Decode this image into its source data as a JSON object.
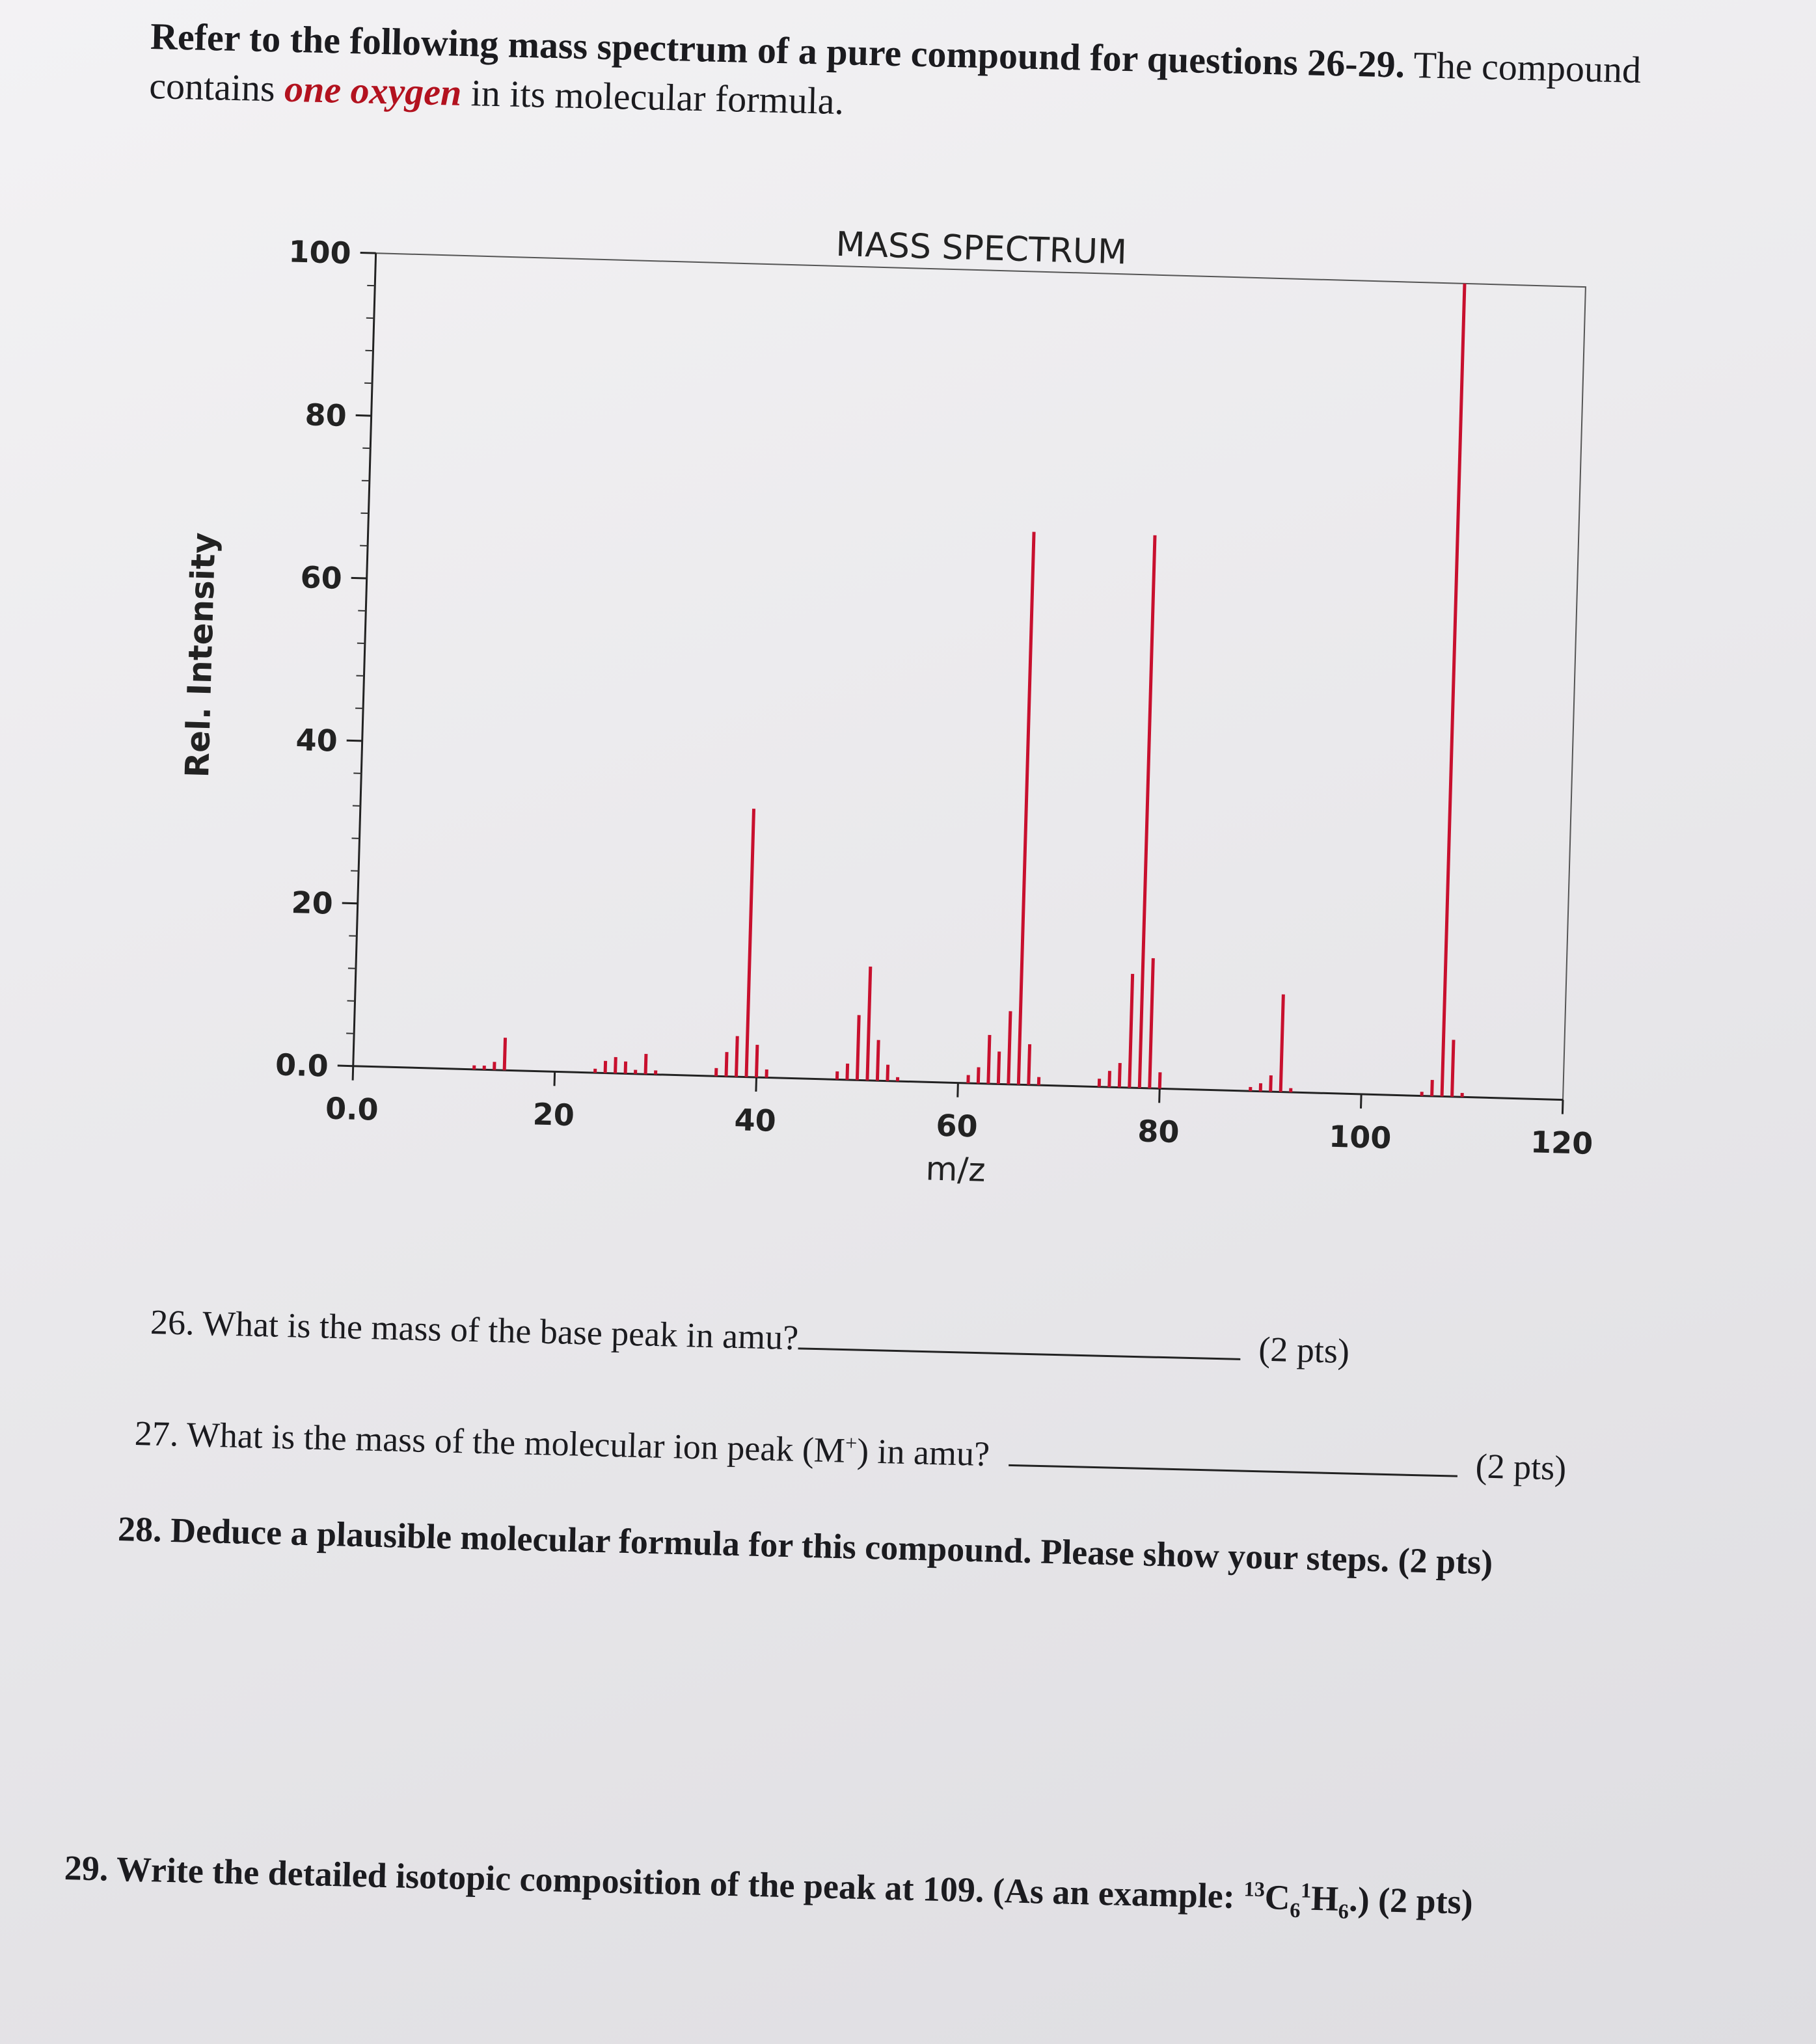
{
  "intro": {
    "part1": "Refer to the following mass spectrum of a pure compound for questions 26-29.",
    "part2": " The compound contains ",
    "accent": "one oxygen",
    "part3": " in its molecular formula."
  },
  "chart_data": {
    "type": "bar",
    "title": "MASS SPECTRUM",
    "xlabel": "m/z",
    "ylabel": "Rel. Intensity",
    "xlim": [
      0,
      120
    ],
    "ylim": [
      0,
      100
    ],
    "xticks": [
      {
        "value": 0,
        "label": "0.0"
      },
      {
        "value": 20,
        "label": "20"
      },
      {
        "value": 40,
        "label": "40"
      },
      {
        "value": 60,
        "label": "60"
      },
      {
        "value": 80,
        "label": "80"
      },
      {
        "value": 100,
        "label": "100"
      },
      {
        "value": 120,
        "label": "120"
      }
    ],
    "yticks": [
      {
        "value": 0,
        "label": "0.0"
      },
      {
        "value": 20,
        "label": "20"
      },
      {
        "value": 40,
        "label": "40"
      },
      {
        "value": 60,
        "label": "60"
      },
      {
        "value": 80,
        "label": "80"
      },
      {
        "value": 100,
        "label": "100"
      }
    ],
    "peak_color": "#c8102e",
    "peaks": [
      {
        "mz": 12,
        "intensity": 0.5
      },
      {
        "mz": 13,
        "intensity": 0.5
      },
      {
        "mz": 14,
        "intensity": 1
      },
      {
        "mz": 15,
        "intensity": 4
      },
      {
        "mz": 24,
        "intensity": 0.5
      },
      {
        "mz": 25,
        "intensity": 1.5
      },
      {
        "mz": 26,
        "intensity": 2
      },
      {
        "mz": 27,
        "intensity": 1.5
      },
      {
        "mz": 28,
        "intensity": 0.5
      },
      {
        "mz": 29,
        "intensity": 2.5
      },
      {
        "mz": 30,
        "intensity": 0.5
      },
      {
        "mz": 36,
        "intensity": 1
      },
      {
        "mz": 37,
        "intensity": 3
      },
      {
        "mz": 38,
        "intensity": 5
      },
      {
        "mz": 39,
        "intensity": 33
      },
      {
        "mz": 40,
        "intensity": 4
      },
      {
        "mz": 41,
        "intensity": 1
      },
      {
        "mz": 48,
        "intensity": 1
      },
      {
        "mz": 49,
        "intensity": 2
      },
      {
        "mz": 50,
        "intensity": 8
      },
      {
        "mz": 51,
        "intensity": 14
      },
      {
        "mz": 52,
        "intensity": 5
      },
      {
        "mz": 53,
        "intensity": 2
      },
      {
        "mz": 54,
        "intensity": 0.5
      },
      {
        "mz": 61,
        "intensity": 1
      },
      {
        "mz": 62,
        "intensity": 2
      },
      {
        "mz": 63,
        "intensity": 6
      },
      {
        "mz": 64,
        "intensity": 4
      },
      {
        "mz": 65,
        "intensity": 9
      },
      {
        "mz": 66,
        "intensity": 68
      },
      {
        "mz": 67,
        "intensity": 5
      },
      {
        "mz": 68,
        "intensity": 1
      },
      {
        "mz": 74,
        "intensity": 1
      },
      {
        "mz": 75,
        "intensity": 2
      },
      {
        "mz": 76,
        "intensity": 3
      },
      {
        "mz": 77,
        "intensity": 14
      },
      {
        "mz": 78,
        "intensity": 68
      },
      {
        "mz": 79,
        "intensity": 16
      },
      {
        "mz": 80,
        "intensity": 2
      },
      {
        "mz": 89,
        "intensity": 0.5
      },
      {
        "mz": 90,
        "intensity": 1
      },
      {
        "mz": 91,
        "intensity": 2
      },
      {
        "mz": 92,
        "intensity": 12
      },
      {
        "mz": 93,
        "intensity": 0.5
      },
      {
        "mz": 106,
        "intensity": 0.5
      },
      {
        "mz": 107,
        "intensity": 2
      },
      {
        "mz": 108,
        "intensity": 100
      },
      {
        "mz": 109,
        "intensity": 7
      },
      {
        "mz": 110,
        "intensity": 0.5
      }
    ]
  },
  "questions": {
    "q26": {
      "text": "26. What is the mass of the base peak in amu?",
      "pts": "(2 pts)"
    },
    "q27": {
      "text_a": "27. What is the mass of the molecular ion peak (M",
      "sup": "+",
      "text_b": ") in amu?",
      "pts": "(2 pts)"
    },
    "q28": {
      "text": "28. Deduce a plausible molecular formula for this compound. Please show your steps. (2 pts)"
    },
    "q29": {
      "text_a": "29. Write the detailed isotopic composition of the peak at 109. (As an example: ",
      "iso1": "13",
      "el1": "C",
      "sub1": "6",
      "iso2": "1",
      "el2": "H",
      "sub2": "6",
      "text_b": ".) (2 pts)"
    }
  }
}
